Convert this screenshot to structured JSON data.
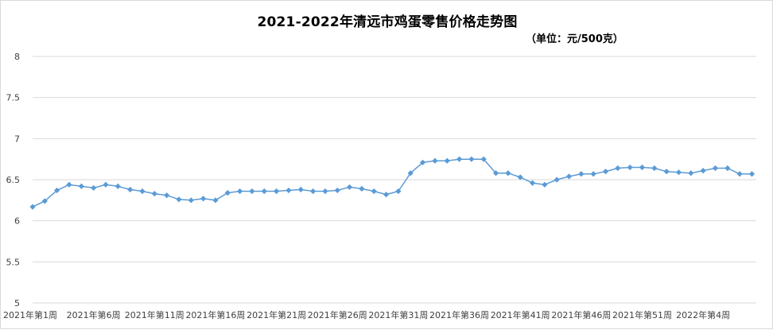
{
  "chart_data": {
    "type": "line",
    "title": "2021-2022年清远市鸡蛋零售价格走势图",
    "subtitle": "（单位：元/500克）",
    "ylim": [
      5,
      8
    ],
    "yticks": [
      "5",
      "5.5",
      "6",
      "6.5",
      "7",
      "7.5",
      "8"
    ],
    "grid": true,
    "legend": "none",
    "line_color": "#5b9bd5",
    "grid_color": "#d9d9d9",
    "x_tick_labels": [
      {
        "index": 0,
        "label": "2021年第1周"
      },
      {
        "index": 5,
        "label": "2021年第6周"
      },
      {
        "index": 10,
        "label": "2021年第11周"
      },
      {
        "index": 15,
        "label": "2021年第16周"
      },
      {
        "index": 20,
        "label": "2021年第21周"
      },
      {
        "index": 25,
        "label": "2021年第26周"
      },
      {
        "index": 30,
        "label": "2021年第31周"
      },
      {
        "index": 35,
        "label": "2021年第36周"
      },
      {
        "index": 40,
        "label": "2021年第41周"
      },
      {
        "index": 45,
        "label": "2021年第46周"
      },
      {
        "index": 50,
        "label": "2021年第51周"
      },
      {
        "index": 55,
        "label": "2022年第4周"
      }
    ],
    "series": [
      {
        "values": [
          6.17,
          6.24,
          6.37,
          6.44,
          6.42,
          6.4,
          6.44,
          6.42,
          6.38,
          6.36,
          6.33,
          6.31,
          6.26,
          6.25,
          6.27,
          6.25,
          6.34,
          6.36,
          6.36,
          6.36,
          6.36,
          6.37,
          6.38,
          6.36,
          6.36,
          6.37,
          6.41,
          6.39,
          6.36,
          6.32,
          6.36,
          6.58,
          6.71,
          6.73,
          6.73,
          6.75,
          6.75,
          6.75,
          6.58,
          6.58,
          6.53,
          6.46,
          6.44,
          6.5,
          6.54,
          6.57,
          6.57,
          6.6,
          6.64,
          6.65,
          6.65,
          6.64,
          6.6,
          6.59,
          6.58,
          6.61,
          6.64,
          6.64,
          6.57,
          6.57
        ]
      }
    ]
  }
}
